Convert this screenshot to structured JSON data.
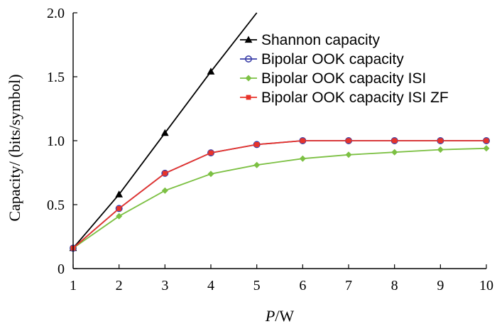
{
  "chart_data": {
    "type": "line",
    "title": "",
    "xlabel_italic": "P",
    "xlabel_rest": "/W",
    "ylabel": "Capacity/ (bits/symbol)",
    "xlim": [
      1,
      10
    ],
    "ylim": [
      0,
      2.0
    ],
    "x_ticks": [
      1,
      2,
      3,
      4,
      5,
      6,
      7,
      8,
      9,
      10
    ],
    "x_tick_labels": [
      "1",
      "2",
      "3",
      "4",
      "5",
      "6",
      "7",
      "8",
      "9",
      "10"
    ],
    "y_ticks": [
      0,
      0.5,
      1.0,
      1.5,
      2.0
    ],
    "y_tick_labels": [
      "0",
      "0.5",
      "1.0",
      "1.5",
      "2.0"
    ],
    "grid": false,
    "legend_position": "top-right",
    "series": [
      {
        "name": "Shannon capacity",
        "color": "#000000",
        "marker": "triangle",
        "x": [
          1,
          2,
          3,
          4,
          5.0
        ],
        "values": [
          0.16,
          0.58,
          1.06,
          1.54,
          2.0
        ],
        "marker_x": [
          1,
          2,
          3,
          4
        ],
        "marker_values": [
          0.16,
          0.58,
          1.06,
          1.54
        ]
      },
      {
        "name": "Bipolar OOK capacity",
        "color": "#3b3fa8",
        "marker": "circle",
        "x": [
          1,
          2,
          3,
          4,
          5,
          6,
          7,
          8,
          9,
          10
        ],
        "values": [
          0.16,
          0.47,
          0.745,
          0.905,
          0.97,
          1.0,
          1.0,
          1.0,
          1.0,
          1.0
        ],
        "marker_x": [
          1,
          2,
          3,
          4,
          5,
          6,
          7,
          8,
          9,
          10
        ],
        "marker_values": [
          0.16,
          0.47,
          0.745,
          0.905,
          0.97,
          1.0,
          1.0,
          1.0,
          1.0,
          1.0
        ]
      },
      {
        "name": "Bipolar OOK capacity ISI",
        "color": "#7cc043",
        "marker": "diamond",
        "x": [
          1,
          2,
          3,
          4,
          5,
          6,
          7,
          8,
          9,
          10
        ],
        "values": [
          0.16,
          0.41,
          0.61,
          0.74,
          0.81,
          0.86,
          0.89,
          0.91,
          0.93,
          0.94
        ],
        "marker_x": [
          1,
          2,
          3,
          4,
          5,
          6,
          7,
          8,
          9,
          10
        ],
        "marker_values": [
          0.16,
          0.41,
          0.61,
          0.74,
          0.81,
          0.86,
          0.89,
          0.91,
          0.93,
          0.94
        ]
      },
      {
        "name": "Bipolar OOK capacity ISI ZF",
        "color": "#e8332a",
        "marker": "square",
        "x": [
          1,
          2,
          3,
          4,
          5,
          6,
          7,
          8,
          9,
          10
        ],
        "values": [
          0.16,
          0.47,
          0.745,
          0.905,
          0.97,
          1.0,
          1.0,
          1.0,
          1.0,
          1.0
        ],
        "marker_x": [
          1,
          2,
          3,
          4,
          5,
          6,
          7,
          8,
          9,
          10
        ],
        "marker_values": [
          0.16,
          0.47,
          0.745,
          0.905,
          0.97,
          1.0,
          1.0,
          1.0,
          1.0,
          1.0
        ]
      }
    ]
  }
}
